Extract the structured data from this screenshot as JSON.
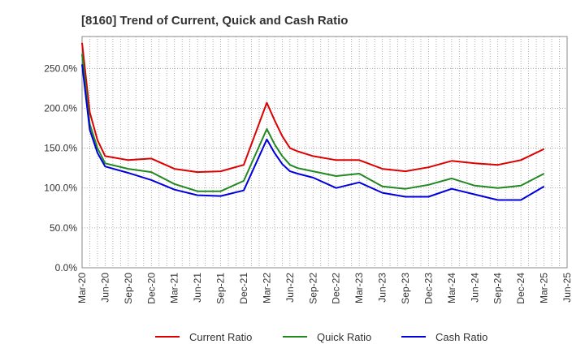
{
  "chart_data": {
    "type": "line",
    "title": "[8160]  Trend of Current, Quick and Cash Ratio",
    "xlabel": "",
    "ylabel": "",
    "ylim": [
      0,
      290
    ],
    "yticks": [
      0,
      50,
      100,
      150,
      200,
      250
    ],
    "ytick_labels": [
      "0.0%",
      "50.0%",
      "100.0%",
      "150.0%",
      "200.0%",
      "250.0%"
    ],
    "grid": true,
    "legend_position": "bottom",
    "x_tick_labels": [
      "Mar-20",
      "Jun-20",
      "Sep-20",
      "Dec-20",
      "Mar-21",
      "Jun-21",
      "Sep-21",
      "Dec-21",
      "Mar-22",
      "Jun-22",
      "Sep-22",
      "Dec-22",
      "Mar-23",
      "Jun-23",
      "Sep-23",
      "Dec-23",
      "Mar-24",
      "Jun-24",
      "Sep-24",
      "Dec-24",
      "Mar-25",
      "Jun-25"
    ],
    "x_range_months": [
      0,
      63
    ],
    "series": [
      {
        "name": "Current Ratio",
        "color": "#dd0000",
        "x_months": [
          0,
          1,
          2,
          3,
          6,
          9,
          12,
          15,
          18,
          21,
          24,
          25,
          26,
          27,
          28,
          30,
          33,
          36,
          39,
          42,
          45,
          48,
          51,
          54,
          57,
          60
        ],
        "values": [
          282,
          195,
          160,
          140,
          135,
          137,
          124,
          120,
          121,
          129,
          207,
          185,
          165,
          150,
          146,
          140,
          135,
          135,
          124,
          121,
          126,
          134,
          131,
          129,
          135,
          149
        ]
      },
      {
        "name": "Quick Ratio",
        "color": "#228822",
        "x_months": [
          0,
          1,
          2,
          3,
          6,
          9,
          12,
          15,
          18,
          21,
          24,
          25,
          26,
          27,
          28,
          30,
          33,
          36,
          39,
          42,
          45,
          48,
          51,
          54,
          57,
          60
        ],
        "values": [
          268,
          180,
          150,
          131,
          124,
          120,
          105,
          96,
          96,
          109,
          174,
          155,
          140,
          129,
          125,
          121,
          115,
          118,
          102,
          99,
          104,
          112,
          103,
          100,
          103,
          118
        ]
      },
      {
        "name": "Cash Ratio",
        "color": "#0000dd",
        "x_months": [
          0,
          1,
          2,
          3,
          6,
          9,
          12,
          15,
          18,
          21,
          24,
          25,
          26,
          27,
          28,
          30,
          33,
          36,
          39,
          42,
          45,
          48,
          51,
          54,
          57,
          60
        ],
        "values": [
          255,
          173,
          144,
          127,
          119,
          110,
          98,
          91,
          90,
          97,
          161,
          144,
          130,
          121,
          118,
          113,
          100,
          107,
          94,
          89,
          89,
          99,
          92,
          85,
          85,
          102
        ]
      }
    ]
  }
}
